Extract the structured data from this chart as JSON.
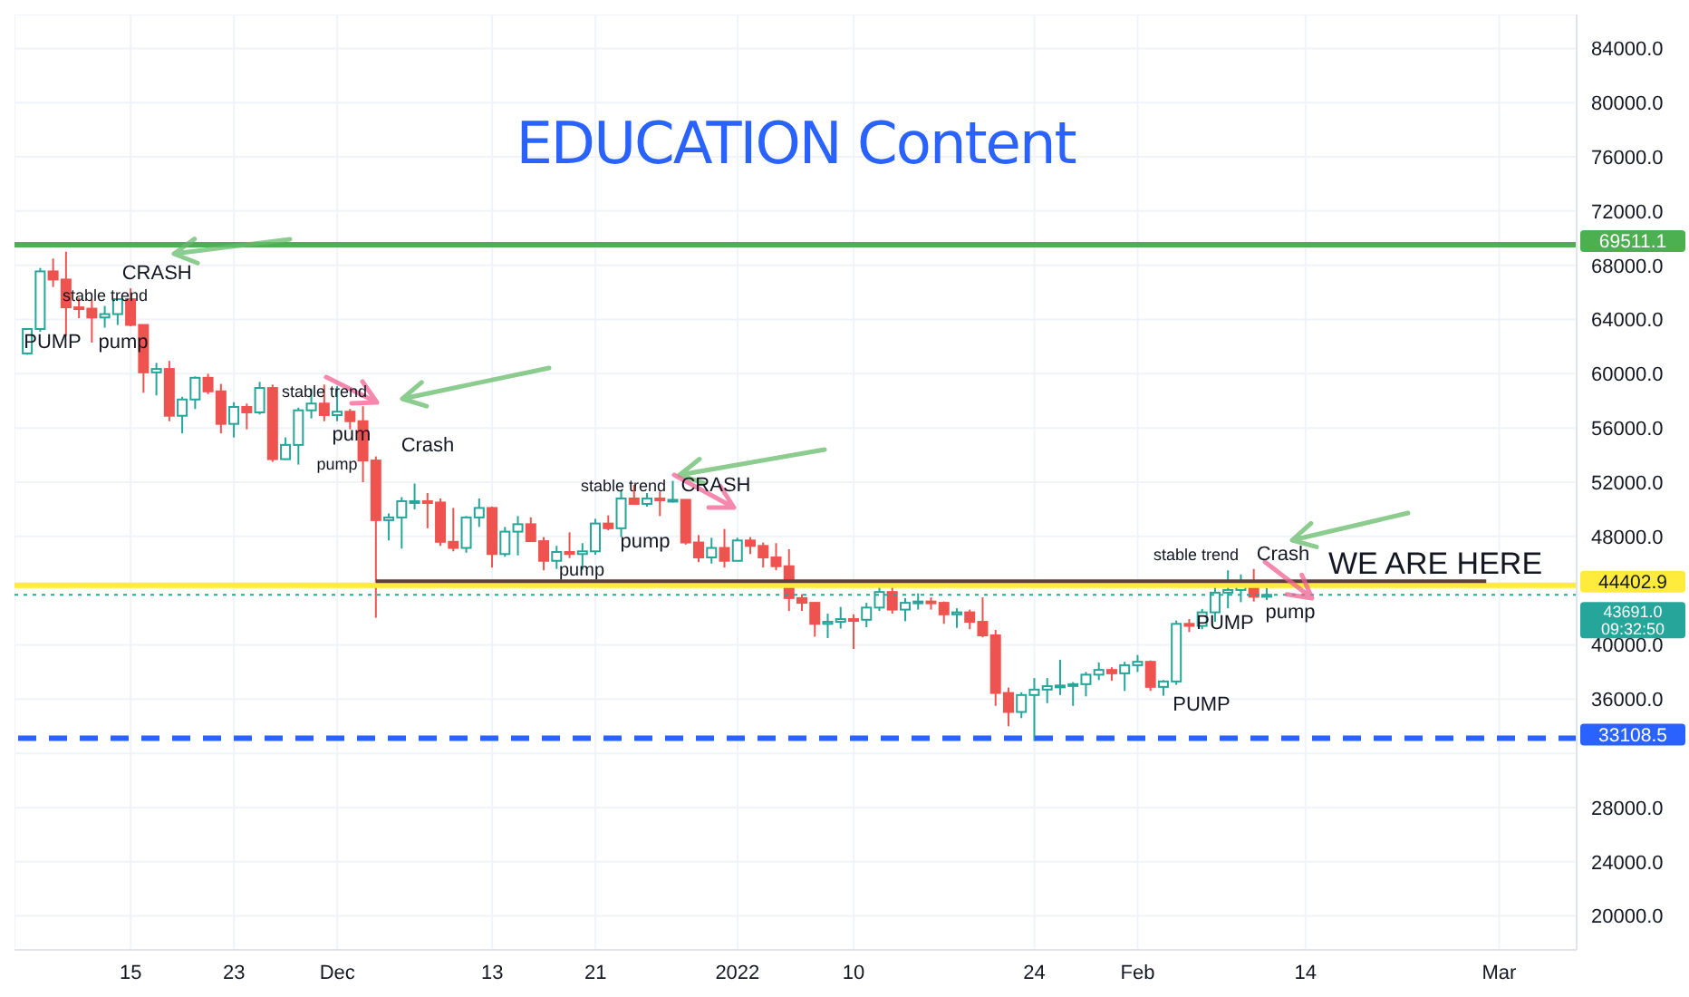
{
  "chart_data": {
    "type": "candlestick",
    "title": "EDUCATION Content",
    "x": [
      "2021-11-07",
      "2021-11-08",
      "2021-11-09",
      "2021-11-10",
      "2021-11-11",
      "2021-11-12",
      "2021-11-13",
      "2021-11-14",
      "2021-11-15",
      "2021-11-16",
      "2021-11-17",
      "2021-11-18",
      "2021-11-19",
      "2021-11-20",
      "2021-11-21",
      "2021-11-22",
      "2021-11-23",
      "2021-11-24",
      "2021-11-25",
      "2021-11-26",
      "2021-11-27",
      "2021-11-28",
      "2021-11-29",
      "2021-11-30",
      "2021-12-01",
      "2021-12-02",
      "2021-12-03",
      "2021-12-04",
      "2021-12-05",
      "2021-12-06",
      "2021-12-07",
      "2021-12-08",
      "2021-12-09",
      "2021-12-10",
      "2021-12-11",
      "2021-12-12",
      "2021-12-13",
      "2021-12-14",
      "2021-12-15",
      "2021-12-16",
      "2021-12-17",
      "2021-12-18",
      "2021-12-19",
      "2021-12-20",
      "2021-12-21",
      "2021-12-22",
      "2021-12-23",
      "2021-12-24",
      "2021-12-25",
      "2021-12-26",
      "2021-12-27",
      "2021-12-28",
      "2021-12-29",
      "2021-12-30",
      "2021-12-31",
      "2022-01-01",
      "2022-01-02",
      "2022-01-03",
      "2022-01-04",
      "2022-01-05",
      "2022-01-06",
      "2022-01-07",
      "2022-01-08",
      "2022-01-09",
      "2022-01-10",
      "2022-01-11",
      "2022-01-12",
      "2022-01-13",
      "2022-01-14",
      "2022-01-15",
      "2022-01-16",
      "2022-01-17",
      "2022-01-18",
      "2022-01-19",
      "2022-01-20",
      "2022-01-21",
      "2022-01-22",
      "2022-01-23",
      "2022-01-24",
      "2022-01-25",
      "2022-01-26",
      "2022-01-27",
      "2022-01-28",
      "2022-01-29",
      "2022-01-30",
      "2022-01-31",
      "2022-02-01",
      "2022-02-02",
      "2022-02-03",
      "2022-02-04",
      "2022-02-05",
      "2022-02-06",
      "2022-02-07",
      "2022-02-08",
      "2022-02-09",
      "2022-02-10",
      "2022-02-11"
    ],
    "ohlc": [
      [
        61500,
        63300,
        61400,
        63300
      ],
      [
        63300,
        67800,
        63100,
        67550
      ],
      [
        67550,
        68500,
        66400,
        66950
      ],
      [
        66950,
        69000,
        62800,
        64900
      ],
      [
        64900,
        65600,
        64100,
        64800
      ],
      [
        64800,
        65500,
        62300,
        64150
      ],
      [
        64150,
        65000,
        63400,
        64400
      ],
      [
        64400,
        65500,
        63600,
        65500
      ],
      [
        65500,
        66300,
        63500,
        63600
      ],
      [
        63600,
        63600,
        58600,
        60100
      ],
      [
        60100,
        60800,
        58400,
        60350
      ],
      [
        60350,
        60950,
        56500,
        56900
      ],
      [
        56900,
        58300,
        55600,
        58100
      ],
      [
        58100,
        59800,
        57400,
        59700
      ],
      [
        59700,
        60000,
        58500,
        58700
      ],
      [
        58700,
        59250,
        55600,
        56300
      ],
      [
        56300,
        57900,
        55300,
        57550
      ],
      [
        57550,
        57800,
        55900,
        57150
      ],
      [
        57150,
        59400,
        57000,
        58950
      ],
      [
        58950,
        59200,
        53500,
        53700
      ],
      [
        53700,
        55300,
        53650,
        54750
      ],
      [
        54750,
        57500,
        53300,
        57300
      ],
      [
        57300,
        58900,
        56700,
        57800
      ],
      [
        57800,
        59200,
        56500,
        56950
      ],
      [
        56950,
        59100,
        56500,
        57200
      ],
      [
        57200,
        57400,
        55900,
        56500
      ],
      [
        56500,
        57600,
        52000,
        53600
      ],
      [
        53600,
        53900,
        42000,
        49200
      ],
      [
        49200,
        49700,
        47700,
        49400
      ],
      [
        49400,
        50900,
        47100,
        50600
      ],
      [
        50600,
        51900,
        50000,
        50600
      ],
      [
        50600,
        51200,
        48600,
        50500
      ],
      [
        50500,
        50800,
        47300,
        47600
      ],
      [
        47600,
        50100,
        46900,
        47150
      ],
      [
        47150,
        49500,
        46800,
        49400
      ],
      [
        49400,
        50800,
        48700,
        50100
      ],
      [
        50100,
        50200,
        45700,
        46700
      ],
      [
        46700,
        48700,
        46500,
        48350
      ],
      [
        48350,
        49500,
        46600,
        48900
      ],
      [
        48900,
        49400,
        47600,
        47650
      ],
      [
        47650,
        47950,
        45500,
        46200
      ],
      [
        46200,
        47300,
        45600,
        46850
      ],
      [
        46850,
        48300,
        46400,
        46700
      ],
      [
        46700,
        47500,
        45550,
        46900
      ],
      [
        46900,
        49300,
        46650,
        48950
      ],
      [
        48950,
        49550,
        48450,
        48600
      ],
      [
        48600,
        51400,
        47950,
        50800
      ],
      [
        50800,
        51800,
        50400,
        50400
      ],
      [
        50400,
        51200,
        50200,
        50800
      ],
      [
        50800,
        51300,
        49500,
        50700
      ],
      [
        50700,
        52100,
        50500,
        50700
      ],
      [
        50700,
        50700,
        47400,
        47550
      ],
      [
        47550,
        48100,
        46100,
        46450
      ],
      [
        46450,
        47900,
        46000,
        47150
      ],
      [
        47150,
        48550,
        45700,
        46200
      ],
      [
        46200,
        47900,
        46200,
        47700
      ],
      [
        47700,
        47950,
        46700,
        47300
      ],
      [
        47300,
        47550,
        45700,
        46450
      ],
      [
        46450,
        47500,
        45500,
        45800
      ],
      [
        45800,
        47050,
        42500,
        43450
      ],
      [
        43450,
        43750,
        42500,
        43100
      ],
      [
        43100,
        43150,
        40600,
        41550
      ],
      [
        41550,
        42300,
        40500,
        41700
      ],
      [
        41700,
        42800,
        41200,
        41900
      ],
      [
        41900,
        42250,
        39700,
        41850
      ],
      [
        41850,
        43100,
        41300,
        42750
      ],
      [
        42750,
        44400,
        42500,
        43900
      ],
      [
        43900,
        44500,
        42300,
        42600
      ],
      [
        42600,
        43450,
        41750,
        43100
      ],
      [
        43100,
        43800,
        42600,
        43200
      ],
      [
        43200,
        43500,
        42600,
        43100
      ],
      [
        43100,
        43200,
        41550,
        42250
      ],
      [
        42250,
        42700,
        41250,
        42400
      ],
      [
        42400,
        42600,
        41150,
        41700
      ],
      [
        41700,
        43500,
        40550,
        40700
      ],
      [
        40700,
        41100,
        35500,
        36450
      ],
      [
        36450,
        36850,
        34000,
        35050
      ],
      [
        35050,
        36500,
        34600,
        36300
      ],
      [
        36300,
        37550,
        32900,
        36700
      ],
      [
        36700,
        37550,
        35700,
        36950
      ],
      [
        36950,
        38900,
        36300,
        37000
      ],
      [
        37000,
        37250,
        35500,
        37100
      ],
      [
        37100,
        38000,
        36200,
        37800
      ],
      [
        37800,
        38700,
        37400,
        38150
      ],
      [
        38150,
        38350,
        37350,
        37900
      ],
      [
        37900,
        38750,
        36600,
        38500
      ],
      [
        38500,
        39250,
        38000,
        38750
      ],
      [
        38750,
        38850,
        36600,
        36900
      ],
      [
        36900,
        37400,
        36250,
        37300
      ],
      [
        37300,
        41800,
        37050,
        41550
      ],
      [
        41550,
        41900,
        40950,
        41400
      ],
      [
        41400,
        42650,
        41150,
        42400
      ],
      [
        42400,
        44500,
        41700,
        43850
      ],
      [
        43850,
        45500,
        42700,
        44050
      ],
      [
        44050,
        45200,
        43150,
        44400
      ],
      [
        44400,
        45600,
        43200,
        43550
      ],
      [
        43550,
        44200,
        43300,
        43691
      ]
    ],
    "series": [
      {
        "type": "line",
        "x": [
          "2021-12-04",
          "2022-02-28"
        ],
        "values": [
          44700,
          44700
        ],
        "color": "#5d4037"
      }
    ],
    "xlim": [
      "2021-11-06",
      "2022-03-07"
    ],
    "xticks": [
      {
        "value": "2021-11-15",
        "label": "15"
      },
      {
        "value": "2021-11-23",
        "label": "23"
      },
      {
        "value": "2021-12-01",
        "label": "Dec"
      },
      {
        "value": "2021-12-13",
        "label": "13"
      },
      {
        "value": "2021-12-21",
        "label": "21"
      },
      {
        "value": "2022-01-01",
        "label": "2022"
      },
      {
        "value": "2022-01-10",
        "label": "10"
      },
      {
        "value": "2022-01-24",
        "label": "24"
      },
      {
        "value": "2022-02-01",
        "label": "Feb"
      },
      {
        "value": "2022-02-14",
        "label": "14"
      },
      {
        "value": "2022-03-01",
        "label": "Mar"
      }
    ],
    "ylim": [
      17500,
      86500
    ],
    "yticks": [
      {
        "value": 20000,
        "label": "20000.0"
      },
      {
        "value": 24000,
        "label": "24000.0"
      },
      {
        "value": 28000,
        "label": "28000.0"
      },
      {
        "value": 32000,
        "label": null
      },
      {
        "value": 36000,
        "label": "36000.0"
      },
      {
        "value": 40000,
        "label": "40000.0"
      },
      {
        "value": 48000,
        "label": "48000.0"
      },
      {
        "value": 52000,
        "label": "52000.0"
      },
      {
        "value": 56000,
        "label": "56000.0"
      },
      {
        "value": 60000,
        "label": "60000.0"
      },
      {
        "value": 64000,
        "label": "64000.0"
      },
      {
        "value": 68000,
        "label": "68000.0"
      },
      {
        "value": 72000,
        "label": "72000.0"
      },
      {
        "value": 76000,
        "label": "76000.0"
      },
      {
        "value": 80000,
        "label": "80000.0"
      },
      {
        "value": 84000,
        "label": "84000.0"
      }
    ],
    "ref_lines": [
      {
        "axis": "y",
        "value": 69511.1,
        "label": "69511.1",
        "color": "#4caf50",
        "line_style": "solid"
      },
      {
        "axis": "y",
        "value": 44402.9,
        "label": "44402.9",
        "color": "#ffeb3b",
        "line_style": "solid"
      },
      {
        "axis": "y",
        "value": 43691.0,
        "label": "43691.0\n09:32:50",
        "color": "#26a69a",
        "line_style": "dotted"
      },
      {
        "axis": "y",
        "value": 33108.5,
        "label": "33108.5",
        "color": "#2962ff",
        "line_style": "dashed"
      }
    ],
    "annotations": [
      "PUMP",
      "pump",
      "stable trend",
      {
        "text": "CRASH",
        "x": "2021-11-19",
        "y": 69511.1
      },
      "stable trend",
      "pump",
      "pum",
      "Crash",
      "stable trend",
      "CRASH",
      "pump",
      "pump",
      "stable trend",
      "Crash",
      "PUMP",
      "pump",
      "PUMP",
      "WE ARE HERE"
    ],
    "grid": true,
    "legend": false
  }
}
